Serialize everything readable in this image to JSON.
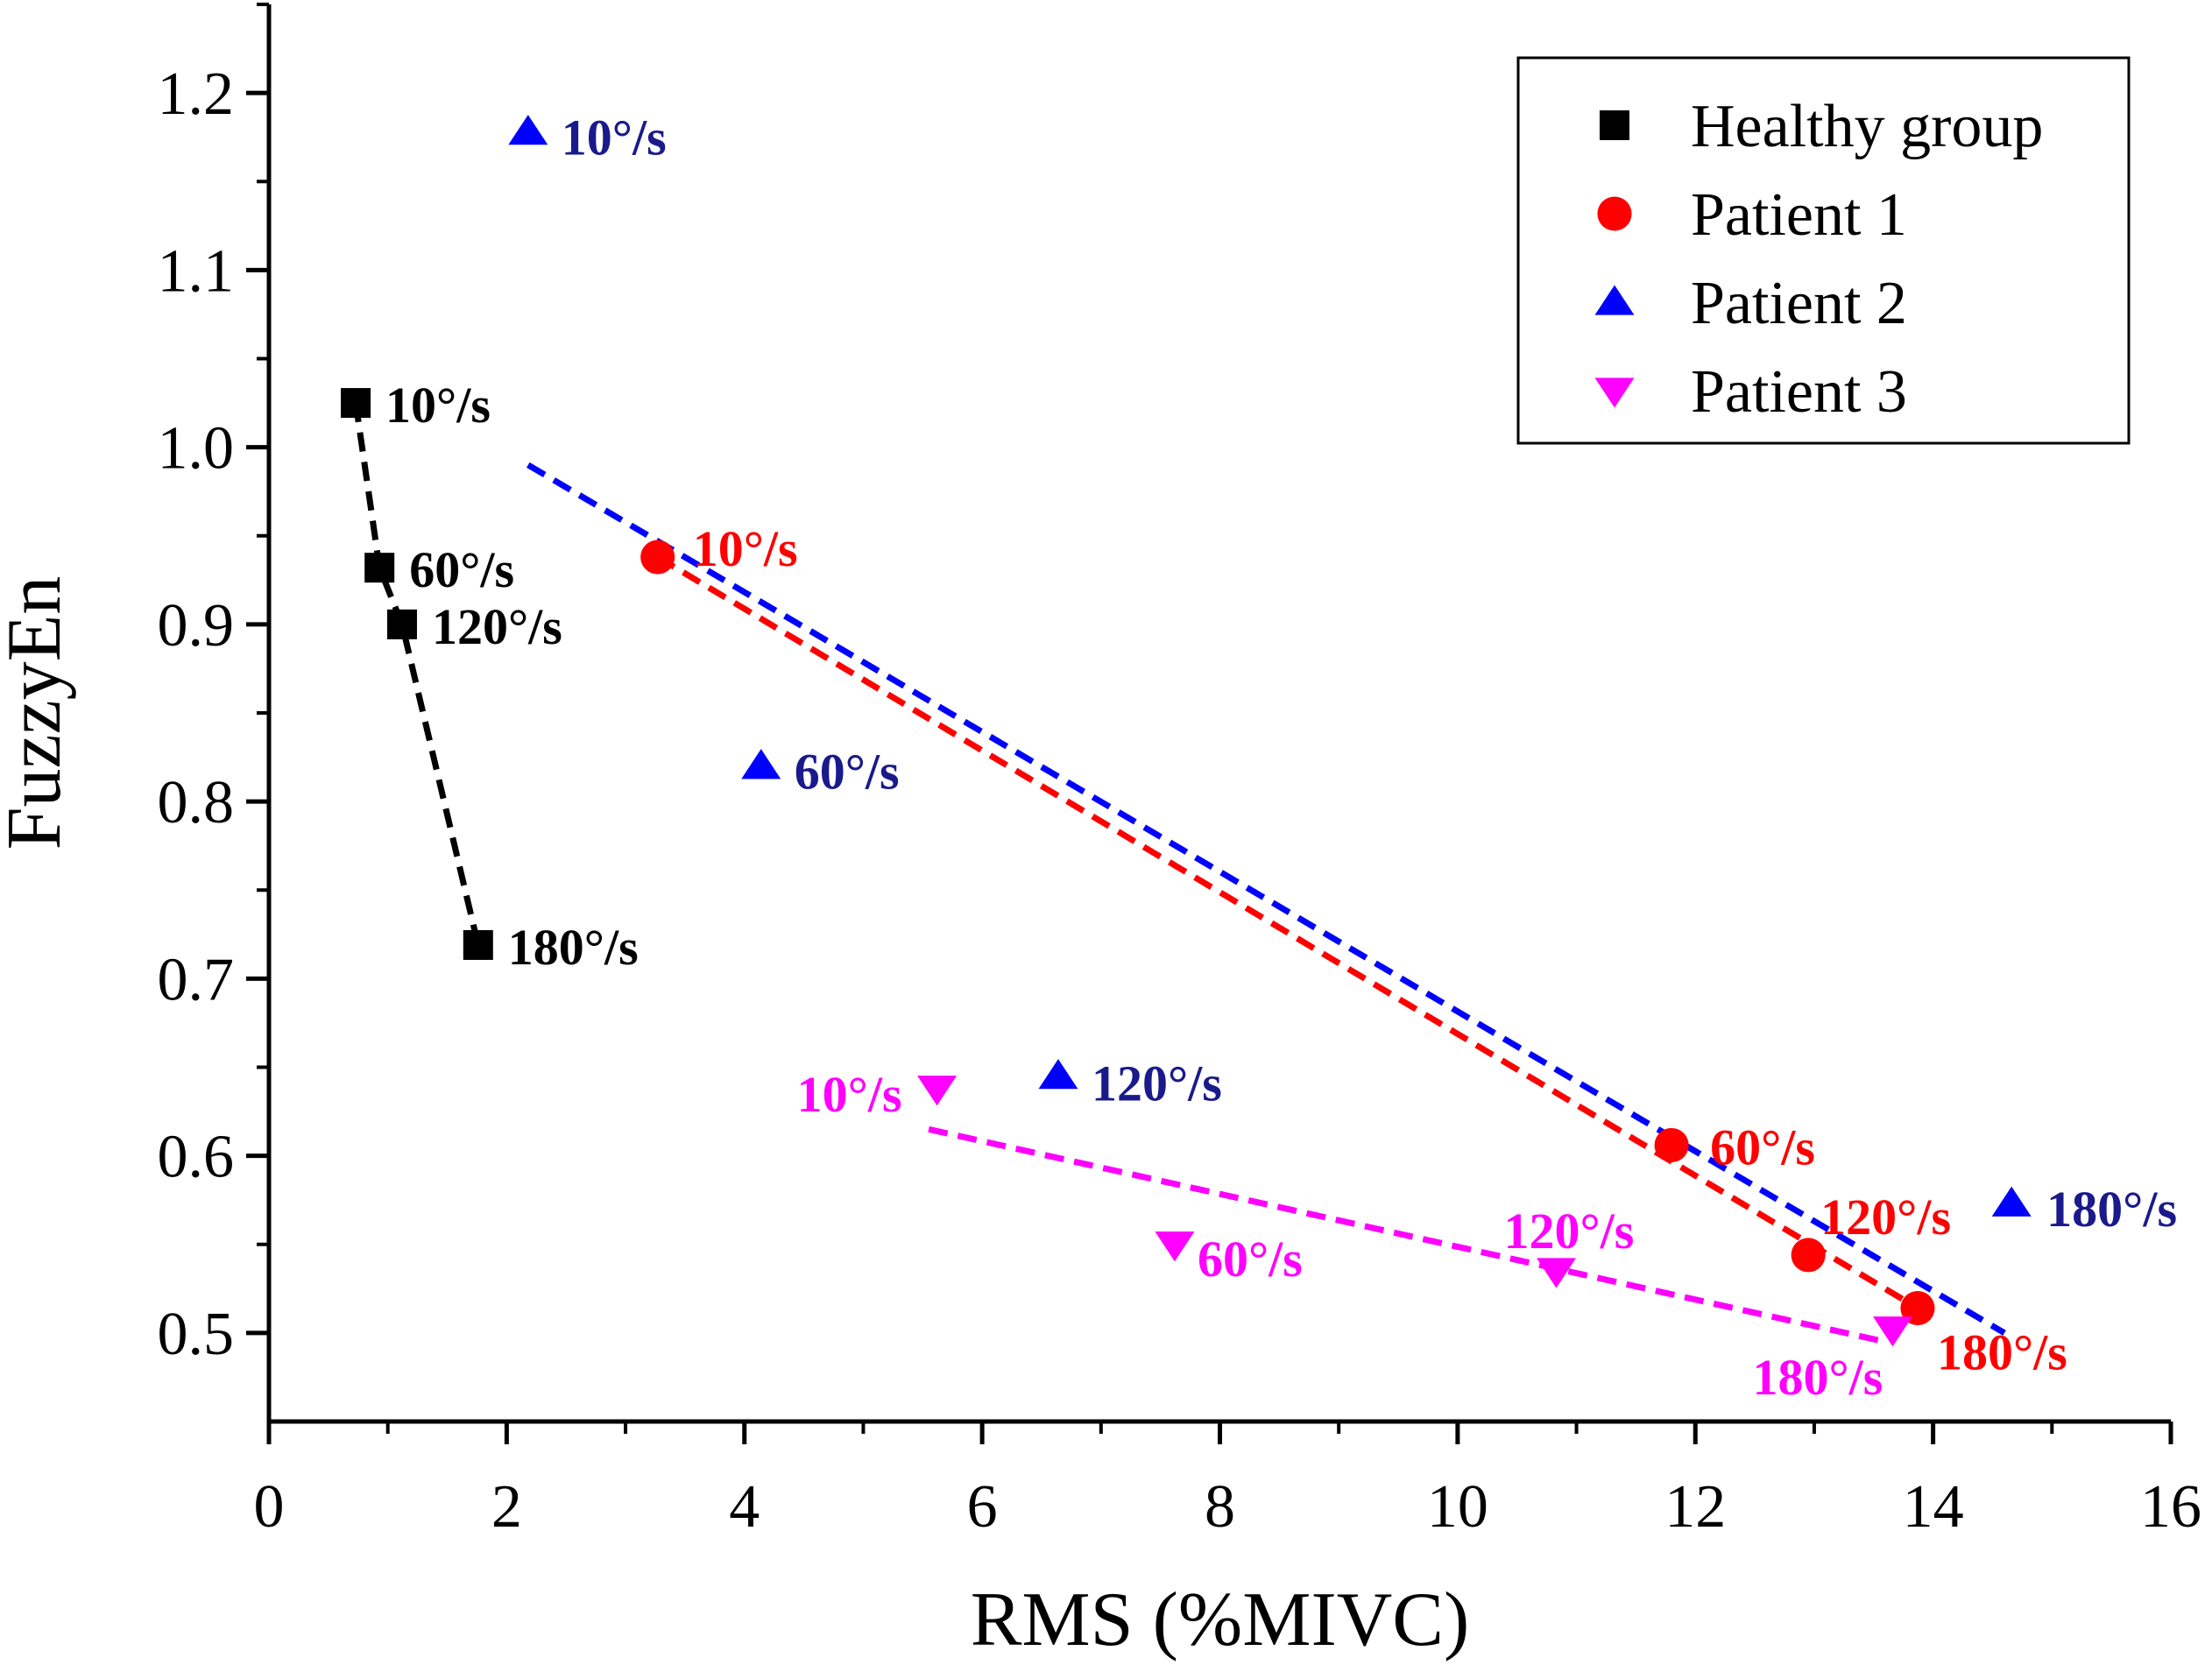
{
  "chart_data": {
    "type": "scatter",
    "title": "",
    "xlabel": "RMS (%MIVC)",
    "ylabel": "FuzzyEn",
    "xlim": [
      0,
      16
    ],
    "ylim": [
      0.45,
      1.25
    ],
    "xticks": [
      0,
      2,
      4,
      6,
      8,
      10,
      12,
      14,
      16
    ],
    "yticks": [
      0.5,
      0.6,
      0.7,
      0.8,
      0.9,
      1.0,
      1.1,
      1.2
    ],
    "xtick_labels": [
      "0",
      "2",
      "4",
      "6",
      "8",
      "10",
      "12",
      "14",
      "16"
    ],
    "ytick_labels": [
      "0.5",
      "0.6",
      "0.7",
      "0.8",
      "0.9",
      "1.0",
      "1.1",
      "1.2"
    ],
    "grid": false,
    "legend_position": "top-right",
    "series": [
      {
        "name": "Healthy group",
        "marker": "square",
        "color": "#000000",
        "label_color": "#000000",
        "points": [
          {
            "x": 0.73,
            "y": 1.025,
            "label": "10°/s"
          },
          {
            "x": 0.93,
            "y": 0.932,
            "label": "60°/s"
          },
          {
            "x": 1.12,
            "y": 0.9,
            "label": "120°/s"
          },
          {
            "x": 1.76,
            "y": 0.719,
            "label": "180°/s"
          }
        ],
        "trend_line": [
          {
            "x": 0.73,
            "y": 1.025
          },
          {
            "x": 0.93,
            "y": 0.932
          },
          {
            "x": 1.12,
            "y": 0.9
          },
          {
            "x": 1.76,
            "y": 0.719
          }
        ]
      },
      {
        "name": "Patient 1",
        "marker": "circle",
        "color": "#ff0000",
        "label_color": "#ff0000",
        "points": [
          {
            "x": 3.27,
            "y": 0.938,
            "label": "10°/s"
          },
          {
            "x": 11.8,
            "y": 0.606,
            "label": "60°/s"
          },
          {
            "x": 12.95,
            "y": 0.544,
            "label": "120°/s"
          },
          {
            "x": 13.87,
            "y": 0.514,
            "label": "180°/s"
          }
        ],
        "trend_line": [
          {
            "x": 3.27,
            "y": 0.938
          },
          {
            "x": 13.87,
            "y": 0.514
          }
        ]
      },
      {
        "name": "Patient 2",
        "marker": "triangle-up",
        "color": "#0000ff",
        "label_color": "#1a1a8c",
        "points": [
          {
            "x": 2.18,
            "y": 1.178,
            "label": "10°/s"
          },
          {
            "x": 4.14,
            "y": 0.82,
            "label": "60°/s"
          },
          {
            "x": 6.64,
            "y": 0.645,
            "label": "120°/s"
          },
          {
            "x": 14.66,
            "y": 0.573,
            "label": "180°/s"
          }
        ],
        "trend_line": [
          {
            "x": 2.18,
            "y": 0.99
          },
          {
            "x": 14.6,
            "y": 0.5
          }
        ]
      },
      {
        "name": "Patient 3",
        "marker": "triangle-down",
        "color": "#ff00ff",
        "label_color": "#ff00ff",
        "points": [
          {
            "x": 5.62,
            "y": 0.638,
            "label": "10°/s"
          },
          {
            "x": 7.62,
            "y": 0.55,
            "label": "60°/s"
          },
          {
            "x": 10.83,
            "y": 0.535,
            "label": "120°/s"
          },
          {
            "x": 13.66,
            "y": 0.502,
            "label": "180°/s"
          }
        ],
        "trend_line": [
          {
            "x": 5.55,
            "y": 0.615
          },
          {
            "x": 13.6,
            "y": 0.495
          }
        ]
      }
    ]
  }
}
